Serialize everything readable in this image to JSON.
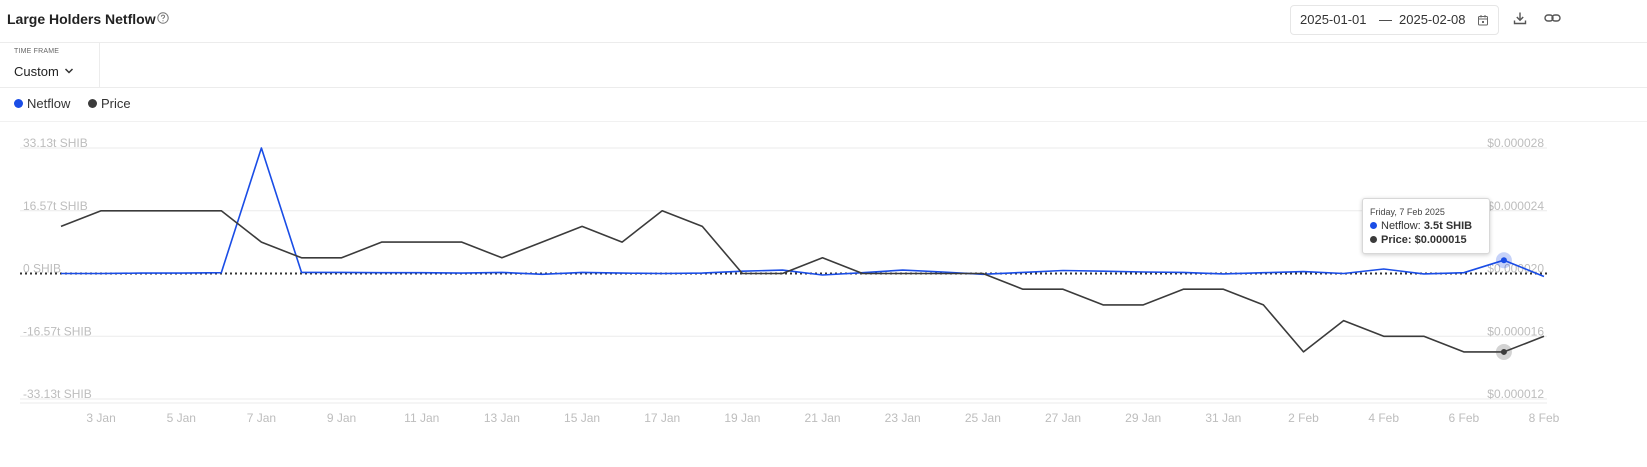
{
  "header": {
    "title": "Large Holders Netflow",
    "date_start": "2025-01-01",
    "date_separator": "—",
    "date_end": "2025-02-08"
  },
  "timeframe": {
    "label": "TIME FRAME",
    "value": "Custom"
  },
  "legend": [
    {
      "name": "Netflow",
      "color": "#1a4de6"
    },
    {
      "name": "Price",
      "color": "#3b3b3b"
    }
  ],
  "tooltip": {
    "date": "Friday, 7 Feb 2025",
    "netflow_label": "Netflow:",
    "netflow_value": "3.5t SHIB",
    "price_label": "Price:",
    "price_value": "$0.000015"
  },
  "colors": {
    "netflow": "#1a4de6",
    "price": "#3b3b3b",
    "grid": "#ebebeb",
    "axis_text": "#bdbdbd"
  },
  "chart_data": {
    "type": "line",
    "x": [
      "2 Jan",
      "3 Jan",
      "4 Jan",
      "5 Jan",
      "6 Jan",
      "7 Jan",
      "8 Jan",
      "9 Jan",
      "10 Jan",
      "11 Jan",
      "12 Jan",
      "13 Jan",
      "14 Jan",
      "15 Jan",
      "16 Jan",
      "17 Jan",
      "18 Jan",
      "19 Jan",
      "20 Jan",
      "21 Jan",
      "22 Jan",
      "23 Jan",
      "24 Jan",
      "25 Jan",
      "26 Jan",
      "27 Jan",
      "28 Jan",
      "29 Jan",
      "30 Jan",
      "31 Jan",
      "1 Feb",
      "2 Feb",
      "3 Feb",
      "4 Feb",
      "5 Feb",
      "6 Feb",
      "7 Feb",
      "8 Feb"
    ],
    "x_tick_labels": [
      "3 Jan",
      "5 Jan",
      "7 Jan",
      "9 Jan",
      "11 Jan",
      "13 Jan",
      "15 Jan",
      "17 Jan",
      "19 Jan",
      "21 Jan",
      "23 Jan",
      "25 Jan",
      "27 Jan",
      "29 Jan",
      "31 Jan",
      "2 Feb",
      "4 Feb",
      "6 Feb",
      "8 Feb"
    ],
    "y_left_ticks": [
      "33.13t SHIB",
      "16.57t SHIB",
      "0 SHIB",
      "-16.57t SHIB",
      "-33.13t SHIB"
    ],
    "y_right_ticks": [
      "$0.000028",
      "$0.000024",
      "$0.000020",
      "$0.000016",
      "$0.000012"
    ],
    "y_left_range": [
      -33.13,
      33.13
    ],
    "y_right_range": [
      1.2e-05,
      2.8e-05
    ],
    "grid": true,
    "zero_line": "dotted",
    "series": [
      {
        "name": "Netflow",
        "axis": "left",
        "unit": "t SHIB",
        "values": [
          0.0,
          0.0,
          0.1,
          0.1,
          0.2,
          33.13,
          0.3,
          0.3,
          0.2,
          0.2,
          0.1,
          0.3,
          -0.2,
          0.3,
          0.1,
          0.0,
          0.1,
          0.6,
          0.9,
          -0.4,
          0.2,
          0.9,
          0.4,
          -0.2,
          0.3,
          0.8,
          0.6,
          0.4,
          0.3,
          -0.1,
          0.2,
          0.5,
          0.0,
          1.2,
          -0.1,
          0.2,
          3.5,
          -0.8
        ]
      },
      {
        "name": "Price",
        "axis": "right",
        "unit": "$",
        "values": [
          2.3e-05,
          2.4e-05,
          2.4e-05,
          2.4e-05,
          2.4e-05,
          2.2e-05,
          2.1e-05,
          2.1e-05,
          2.2e-05,
          2.2e-05,
          2.2e-05,
          2.1e-05,
          2.2e-05,
          2.3e-05,
          2.2e-05,
          2.4e-05,
          2.3e-05,
          2e-05,
          2e-05,
          2.1e-05,
          2e-05,
          2e-05,
          2e-05,
          2e-05,
          1.9e-05,
          1.9e-05,
          1.8e-05,
          1.8e-05,
          1.9e-05,
          1.9e-05,
          1.8e-05,
          1.5e-05,
          1.7e-05,
          1.6e-05,
          1.6e-05,
          1.5e-05,
          1.5e-05,
          1.6e-05
        ]
      }
    ],
    "highlight": {
      "x": "7 Feb"
    }
  }
}
